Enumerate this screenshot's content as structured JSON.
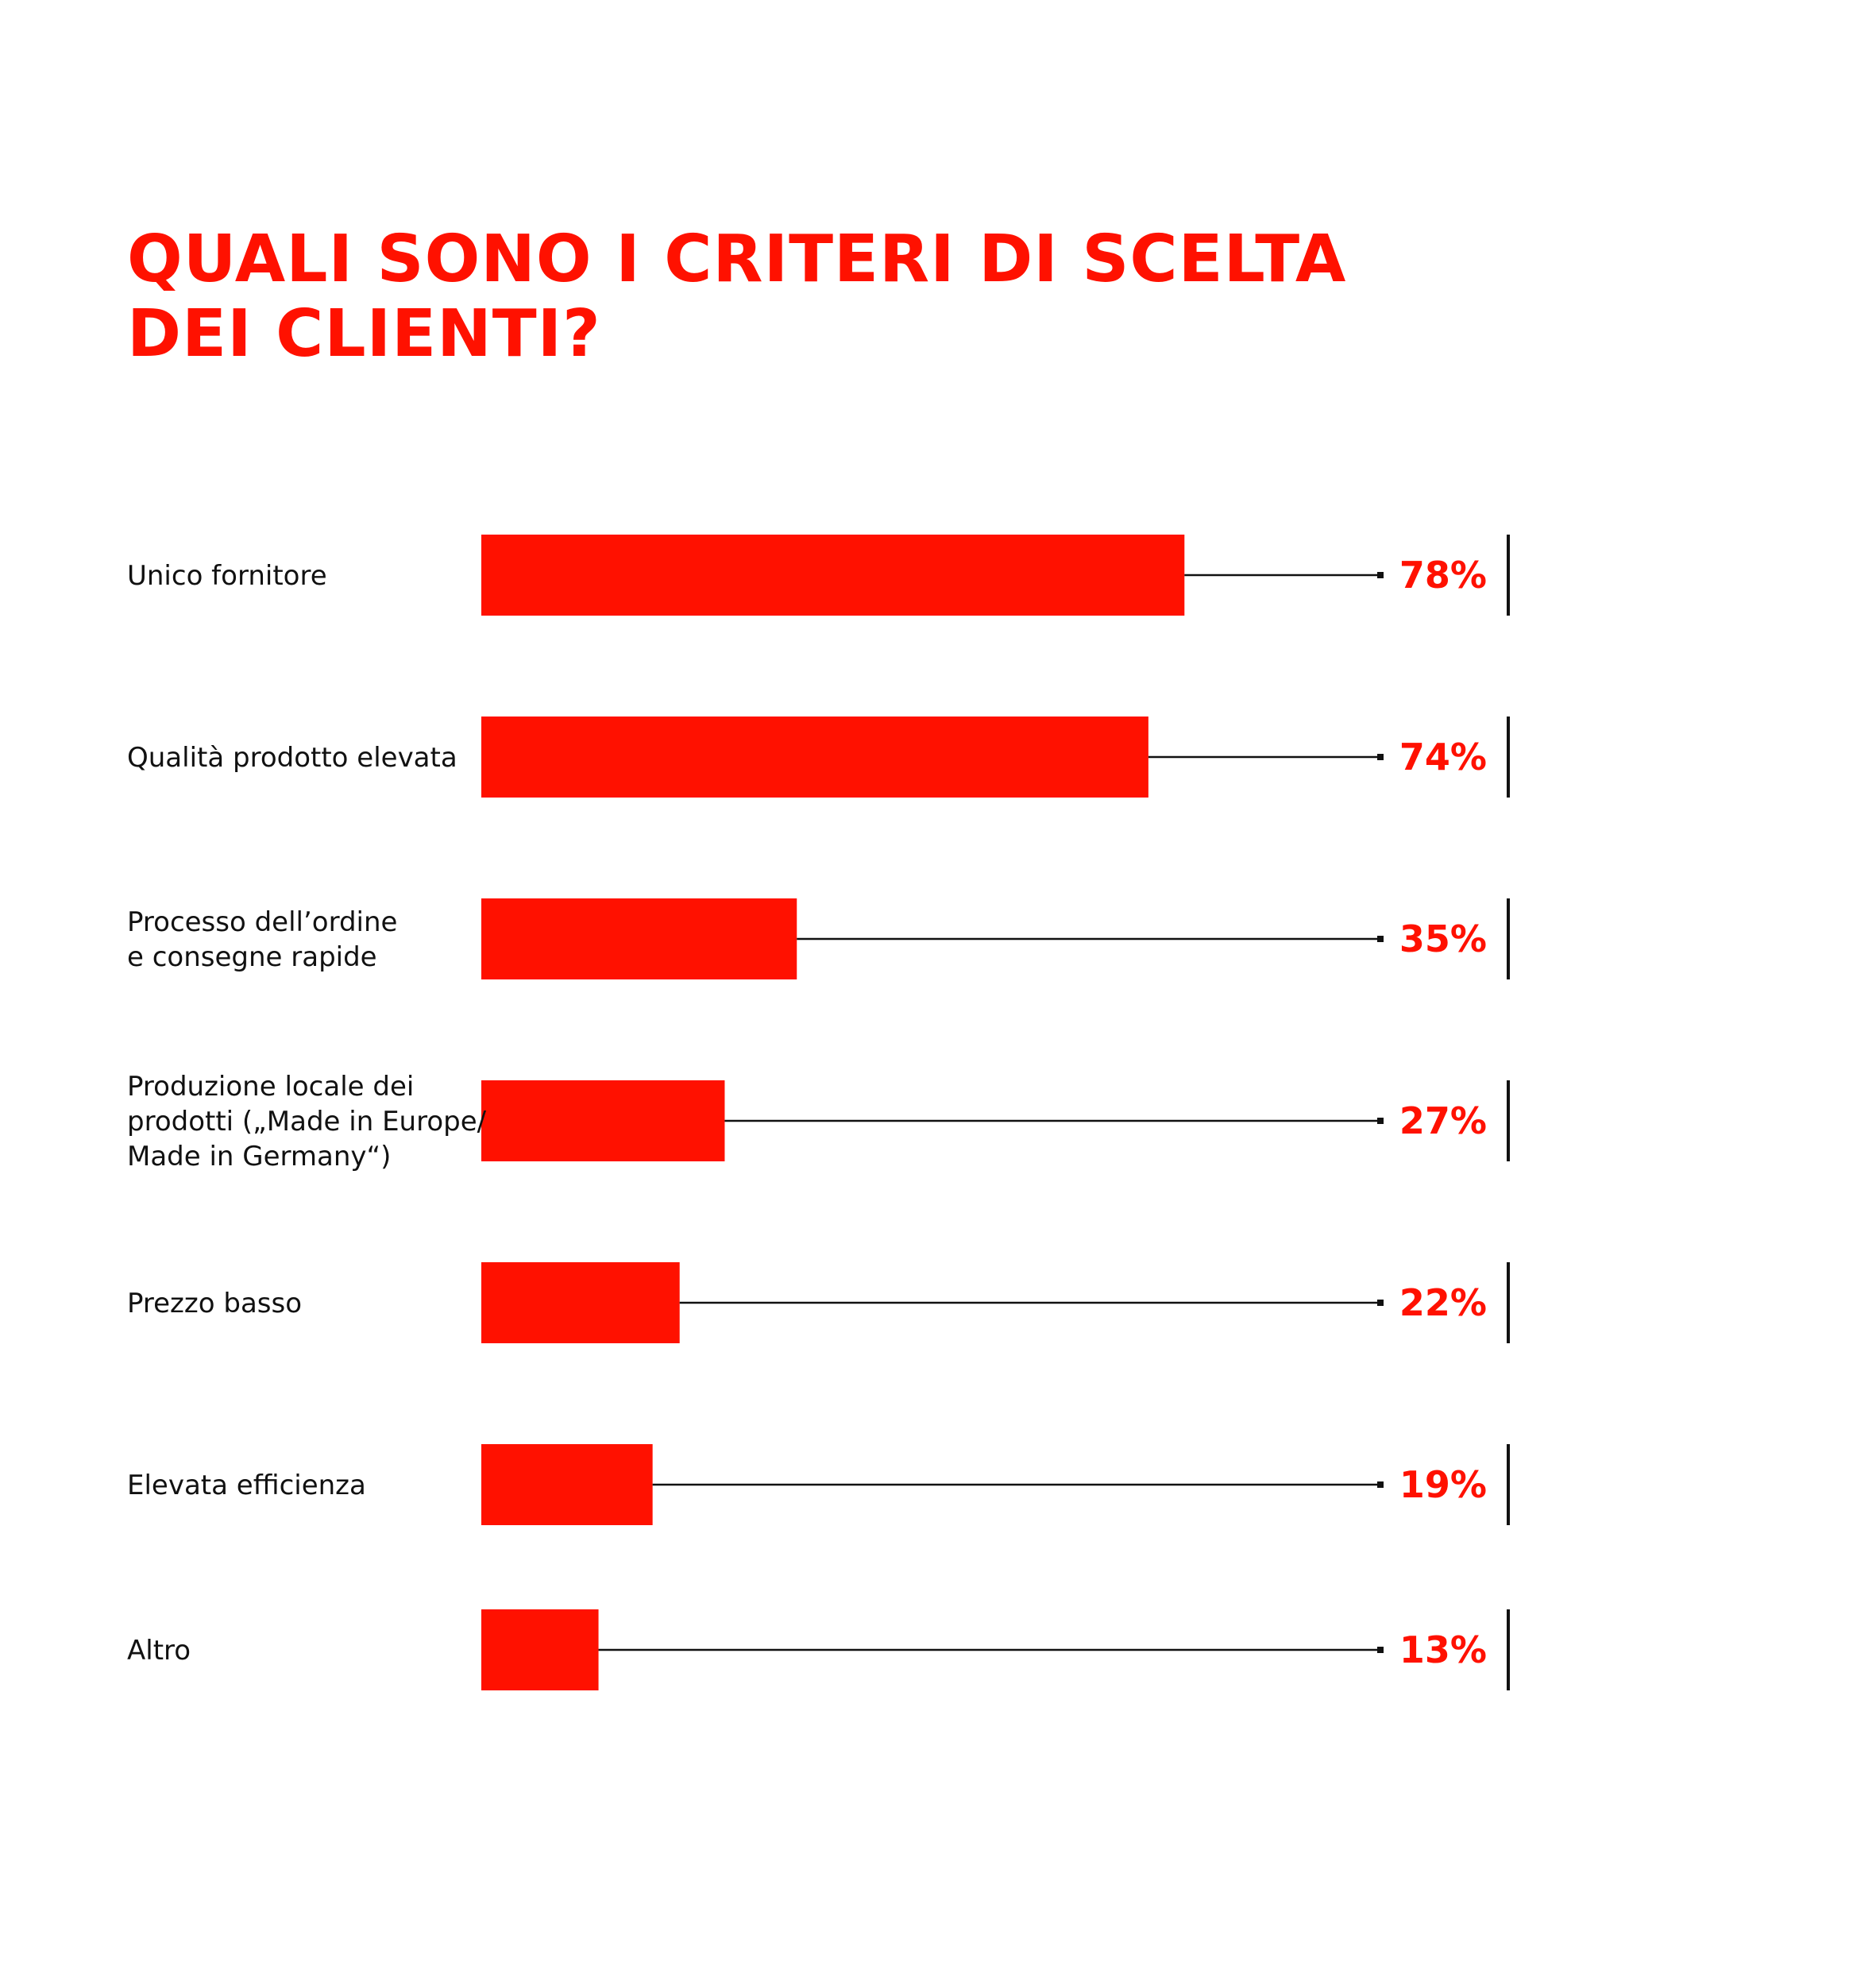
{
  "title_lines": [
    "QUALI SONO I CRITERI DI SCELTA",
    "DEI CLIENTI?"
  ],
  "colors": {
    "accent": "#ff1100",
    "text": "#111111",
    "line": "#111111"
  },
  "chart_data": {
    "type": "bar",
    "orientation": "horizontal",
    "title": "QUALI SONO I CRITERI DI SCELTA DEI CLIENTI?",
    "unit": "%",
    "xlim": [
      0,
      100
    ],
    "grid": false,
    "categories": [
      [
        "Unico fornitore"
      ],
      [
        "Qualità prodotto elevata"
      ],
      [
        "Processo dell’ordine",
        "e consegne rapide"
      ],
      [
        "Produzione locale dei",
        "prodotti („Made in Europe/",
        "Made in Germany“)"
      ],
      [
        "Prezzo basso"
      ],
      [
        "Elevata efficienza"
      ],
      [
        "Altro"
      ]
    ],
    "values": [
      78,
      74,
      35,
      27,
      22,
      19,
      13
    ],
    "value_labels": [
      "78%",
      "74%",
      "35%",
      "27%",
      "22%",
      "19%",
      "13%"
    ]
  }
}
